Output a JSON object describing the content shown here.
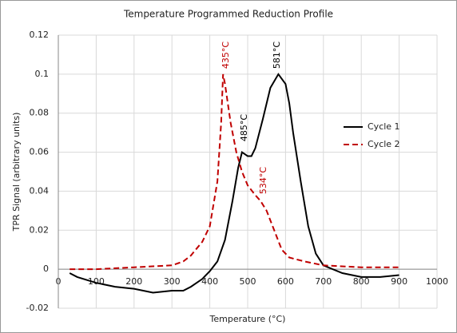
{
  "chart_data": {
    "type": "line",
    "title": "Temperature Programmed Reduction Profile",
    "x_label": "Temperature (°C)",
    "y_label": "TPR Signal (arbitrary units)",
    "xlim": [
      0,
      1000
    ],
    "xticks": [
      0,
      100,
      200,
      300,
      400,
      500,
      600,
      700,
      800,
      900,
      1000
    ],
    "ylim": [
      -0.02,
      0.12
    ],
    "yticks": [
      0.12,
      0.1,
      0.08,
      0.06,
      0.04,
      0.02,
      0,
      -0.02
    ],
    "grid": true,
    "legend_position": "right",
    "series": [
      {
        "name": "Cycle 1",
        "color": "#000000",
        "line_style": "solid",
        "x": [
          30,
          50,
          100,
          150,
          200,
          250,
          300,
          330,
          350,
          380,
          400,
          420,
          440,
          460,
          475,
          485,
          500,
          510,
          520,
          540,
          560,
          581,
          600,
          610,
          620,
          640,
          660,
          680,
          700,
          750,
          800,
          850,
          900
        ],
        "values": [
          -0.002,
          -0.004,
          -0.007,
          -0.009,
          -0.01,
          -0.012,
          -0.011,
          -0.011,
          -0.009,
          -0.005,
          -0.001,
          0.004,
          0.015,
          0.035,
          0.052,
          0.06,
          0.058,
          0.058,
          0.062,
          0.077,
          0.093,
          0.1,
          0.095,
          0.085,
          0.07,
          0.045,
          0.022,
          0.008,
          0.002,
          -0.002,
          -0.004,
          -0.004,
          -0.003
        ]
      },
      {
        "name": "Cycle 2",
        "color": "#c00000",
        "line_style": "dashed",
        "x": [
          30,
          100,
          200,
          300,
          330,
          350,
          380,
          400,
          420,
          430,
          435,
          440,
          455,
          470,
          485,
          500,
          520,
          534,
          550,
          570,
          590,
          610,
          650,
          700,
          800,
          900
        ],
        "values": [
          0,
          0,
          0.001,
          0.002,
          0.004,
          0.007,
          0.014,
          0.022,
          0.045,
          0.075,
          0.1,
          0.095,
          0.075,
          0.06,
          0.05,
          0.043,
          0.038,
          0.035,
          0.03,
          0.02,
          0.01,
          0.006,
          0.004,
          0.002,
          0.001,
          0.001
        ]
      }
    ],
    "annotations": [
      {
        "text": "435°C",
        "color": "#c00000"
      },
      {
        "text": "581°C",
        "color": "#000000"
      },
      {
        "text": "485°C",
        "color": "#000000"
      },
      {
        "text": "534°C",
        "color": "#c00000"
      }
    ]
  }
}
